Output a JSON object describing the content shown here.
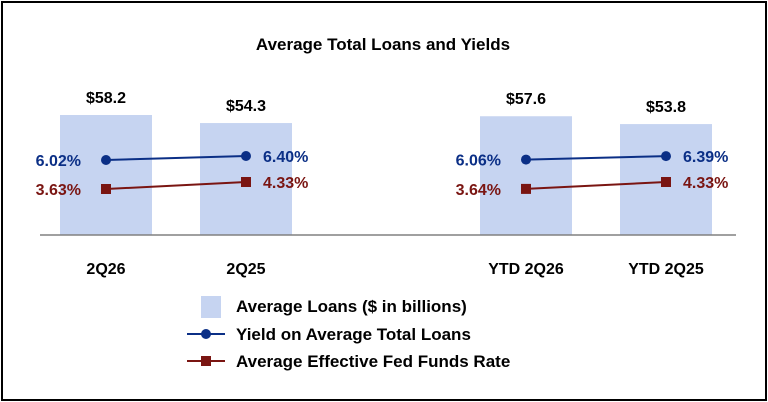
{
  "chart_data": {
    "type": "bar",
    "title": "Average Total Loans and Yields",
    "categories": [
      "2Q26",
      "2Q25",
      "YTD 2Q26",
      "YTD 2Q25"
    ],
    "groups": [
      {
        "categories": [
          "2Q26",
          "2Q25"
        ]
      },
      {
        "categories": [
          "YTD 2Q26",
          "YTD 2Q25"
        ]
      }
    ],
    "series": [
      {
        "name": "Average Loans ($ in billions)",
        "kind": "bar",
        "values": [
          58.2,
          54.3,
          57.6,
          53.8
        ],
        "labels": [
          "$58.2",
          "$54.3",
          "$57.6",
          "$53.8"
        ],
        "color": "#c6d4f1"
      },
      {
        "name": "Yield on Average Total Loans",
        "kind": "line",
        "values": [
          6.02,
          6.4,
          6.06,
          6.39
        ],
        "labels": [
          "6.02%",
          "6.40%",
          "6.06%",
          "6.39%"
        ],
        "color": "#0b2f86",
        "marker": "circle"
      },
      {
        "name": "Average Effective Fed Funds Rate",
        "kind": "line",
        "values": [
          3.63,
          4.33,
          3.64,
          4.33
        ],
        "labels": [
          "3.63%",
          "4.33%",
          "3.64%",
          "4.33%"
        ],
        "color": "#7a1512",
        "marker": "square"
      }
    ],
    "legend": "bottom-center",
    "grid": false
  }
}
